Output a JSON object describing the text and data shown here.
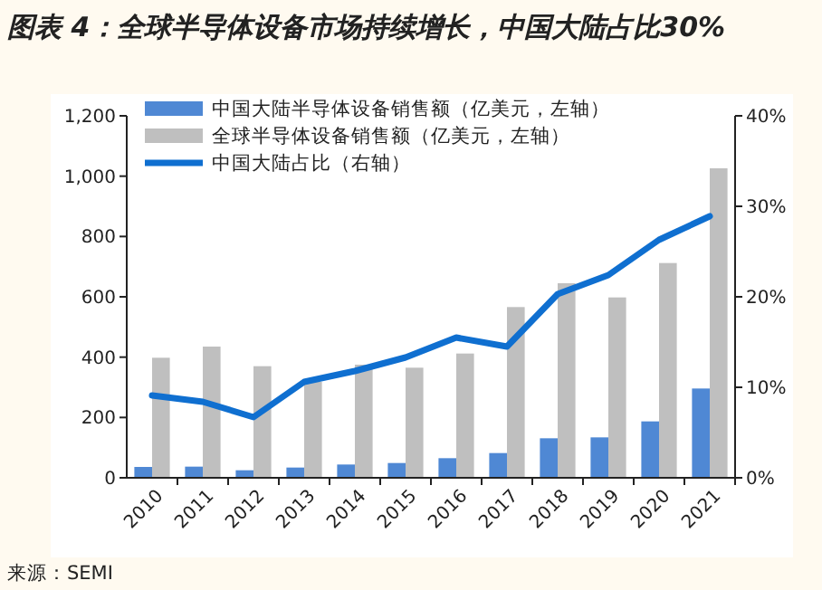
{
  "chart_data": {
    "type": "bar",
    "title": "图表 4：全球半导体设备市场持续增长，中国大陆占比30%",
    "categories": [
      "2010",
      "2011",
      "2012",
      "2013",
      "2014",
      "2015",
      "2016",
      "2017",
      "2018",
      "2019",
      "2020",
      "2021"
    ],
    "series": [
      {
        "name": "中国大陆半导体设备销售额（亿美元，左轴）",
        "color": "#4f88d4",
        "values": [
          36,
          37,
          25,
          34,
          44,
          49,
          65,
          82,
          131,
          134,
          187,
          296
        ]
      },
      {
        "name": "全球半导体设备销售额（亿美元，左轴）",
        "color": "#bfbfbf",
        "values": [
          398,
          435,
          370,
          318,
          375,
          365,
          412,
          566,
          645,
          598,
          712,
          1026
        ]
      },
      {
        "name": "中国大陆占比（右轴）",
        "type": "line",
        "axis": "y2",
        "color": "#0f6fd0",
        "values": [
          9.1,
          8.4,
          6.7,
          10.6,
          11.8,
          13.3,
          15.5,
          14.5,
          20.3,
          22.4,
          26.3,
          28.9
        ]
      }
    ],
    "ylim": [
      0,
      1200
    ],
    "yticks": [
      0,
      200,
      400,
      600,
      800,
      {
        "value": 1000,
        "label": "1,000"
      },
      {
        "value": 1200,
        "label": "1,200"
      }
    ],
    "y2lim": [
      0,
      40
    ],
    "y2ticks": [
      {
        "value": 0,
        "label": "0%"
      },
      {
        "value": 10,
        "label": "10%"
      },
      {
        "value": 20,
        "label": "20%"
      },
      {
        "value": 30,
        "label": "30%"
      },
      {
        "value": 40,
        "label": "40%"
      }
    ],
    "legend": "top left",
    "grid": false,
    "annotations": [
      "来源：SEMI"
    ]
  }
}
